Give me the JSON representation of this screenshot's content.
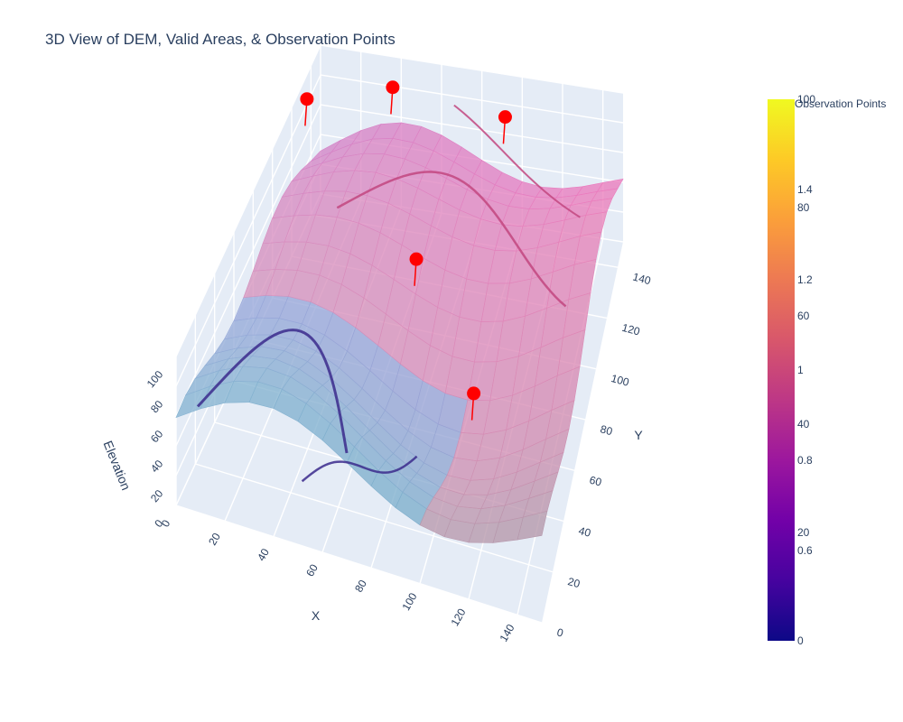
{
  "chart_data": {
    "type": "surface3d",
    "title": "3D View of DEM, Valid Areas, & Observation Points",
    "axes": {
      "x": {
        "label": "X",
        "ticks": [
          "0",
          "20",
          "40",
          "60",
          "80",
          "100",
          "120",
          "140"
        ],
        "range": [
          0,
          150
        ]
      },
      "y": {
        "label": "Y",
        "ticks": [
          "0",
          "20",
          "40",
          "60",
          "80",
          "100",
          "120",
          "140"
        ],
        "range": [
          0,
          150
        ]
      },
      "z": {
        "label": "Elevation",
        "ticks": [
          "0",
          "20",
          "40",
          "60",
          "80",
          "100"
        ],
        "range": [
          0,
          100
        ]
      }
    },
    "colorbars": {
      "title": "Observation Points",
      "elevation_ticks": [
        "0",
        "20",
        "40",
        "60",
        "80",
        "100"
      ],
      "observation_ticks": [
        "0.6",
        "0.8",
        "1",
        "1.2",
        "1.4"
      ],
      "colors": [
        "#0d0887",
        "#46039f",
        "#7201a8",
        "#9c179e",
        "#bd3786",
        "#d8576b",
        "#ed7953",
        "#fb9f3a",
        "#fdca26",
        "#f0f921"
      ]
    },
    "observation_points": [
      {
        "x": 5,
        "y": 125,
        "z": 100
      },
      {
        "x": 72,
        "y": 85,
        "z": 72
      },
      {
        "x": 110,
        "y": 45,
        "z": 60
      },
      {
        "x": 40,
        "y": 140,
        "z": 95
      },
      {
        "x": 95,
        "y": 140,
        "z": 88
      }
    ],
    "marker_color": "#ff0000",
    "grid": true
  }
}
